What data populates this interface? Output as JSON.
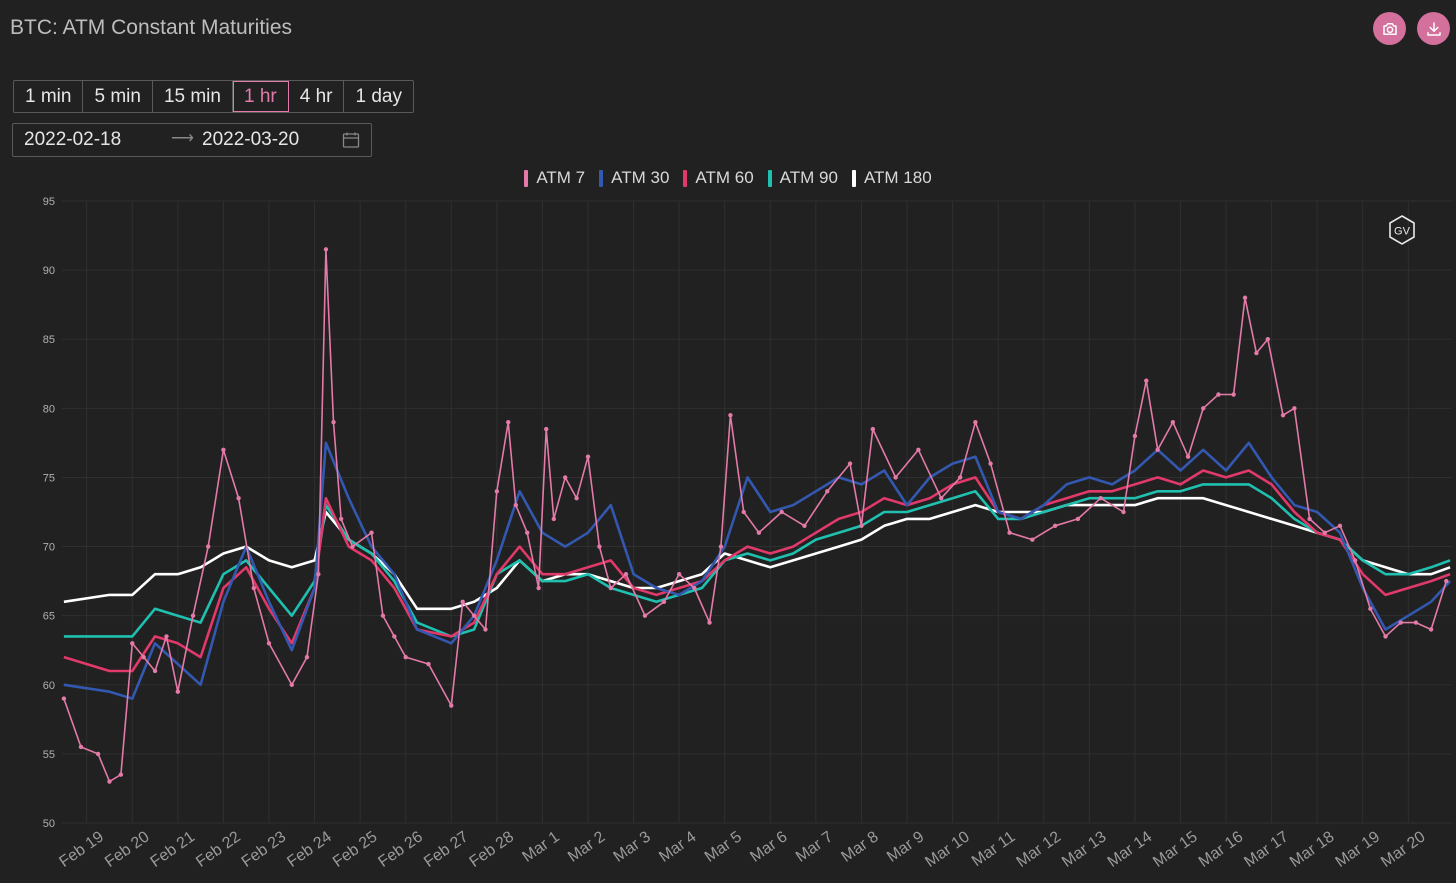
{
  "header": {
    "title": "BTC: ATM Constant Maturities",
    "camera_icon": "camera-icon",
    "download_icon": "download-icon",
    "accent": "#d4709c"
  },
  "timeframes": [
    {
      "label": "1 min",
      "active": false
    },
    {
      "label": "5 min",
      "active": false
    },
    {
      "label": "15 min",
      "active": false
    },
    {
      "label": "1 hr",
      "active": true
    },
    {
      "label": "4 hr",
      "active": false
    },
    {
      "label": "1 day",
      "active": false
    }
  ],
  "date_range": {
    "start": "2022-02-18",
    "end": "2022-03-20",
    "icon": "calendar-icon"
  },
  "watermark": "GV",
  "chart_data": {
    "type": "line",
    "title": "",
    "xlabel": "",
    "ylabel": "",
    "ylim": [
      50,
      95
    ],
    "yticks": [
      50,
      55,
      60,
      65,
      70,
      75,
      80,
      85,
      90,
      95
    ],
    "xlim": [
      "2022-02-18T11:00",
      "2022-03-20T23:00"
    ],
    "xticks": [
      "Feb 19",
      "Feb 20",
      "Feb 21",
      "Feb 22",
      "Feb 23",
      "Feb 24",
      "Feb 25",
      "Feb 26",
      "Feb 27",
      "Feb 28",
      "Mar 1",
      "Mar 2",
      "Mar 3",
      "Mar 4",
      "Mar 5",
      "Mar 6",
      "Mar 7",
      "Mar 8",
      "Mar 9",
      "Mar 10",
      "Mar 11",
      "Mar 12",
      "Mar 13",
      "Mar 14",
      "Mar 15",
      "Mar 16",
      "Mar 17",
      "Mar 18",
      "Mar 19",
      "Mar 20"
    ],
    "grid": true,
    "legend": "top-center",
    "series": [
      {
        "name": "ATM 7",
        "color": "#e37aa8",
        "marker": true,
        "x": [
          "2022-02-18T12:00",
          "2022-02-18T21:00",
          "2022-02-19T06:00",
          "2022-02-19T12:00",
          "2022-02-19T18:00",
          "2022-02-20T00:00",
          "2022-02-20T06:00",
          "2022-02-20T12:00",
          "2022-02-20T18:00",
          "2022-02-21T00:00",
          "2022-02-21T08:00",
          "2022-02-21T16:00",
          "2022-02-22T00:00",
          "2022-02-22T08:00",
          "2022-02-22T16:00",
          "2022-02-23T00:00",
          "2022-02-23T12:00",
          "2022-02-23T20:00",
          "2022-02-24T02:00",
          "2022-02-24T06:00",
          "2022-02-24T10:00",
          "2022-02-24T14:00",
          "2022-02-24T20:00",
          "2022-02-25T06:00",
          "2022-02-25T12:00",
          "2022-02-25T18:00",
          "2022-02-26T00:00",
          "2022-02-26T12:00",
          "2022-02-27T00:00",
          "2022-02-27T06:00",
          "2022-02-27T12:00",
          "2022-02-27T18:00",
          "2022-02-28T00:00",
          "2022-02-28T06:00",
          "2022-02-28T10:00",
          "2022-02-28T16:00",
          "2022-02-28T22:00",
          "2022-03-01T02:00",
          "2022-03-01T06:00",
          "2022-03-01T12:00",
          "2022-03-01T18:00",
          "2022-03-02T00:00",
          "2022-03-02T06:00",
          "2022-03-02T12:00",
          "2022-03-02T20:00",
          "2022-03-03T06:00",
          "2022-03-03T16:00",
          "2022-03-04T00:00",
          "2022-03-04T08:00",
          "2022-03-04T16:00",
          "2022-03-04T22:00",
          "2022-03-05T03:00",
          "2022-03-05T10:00",
          "2022-03-05T18:00",
          "2022-03-06T06:00",
          "2022-03-06T18:00",
          "2022-03-07T06:00",
          "2022-03-07T18:00",
          "2022-03-08T00:00",
          "2022-03-08T06:00",
          "2022-03-08T18:00",
          "2022-03-09T06:00",
          "2022-03-09T18:00",
          "2022-03-10T04:00",
          "2022-03-10T12:00",
          "2022-03-10T20:00",
          "2022-03-11T06:00",
          "2022-03-11T18:00",
          "2022-03-12T06:00",
          "2022-03-12T18:00",
          "2022-03-13T06:00",
          "2022-03-13T18:00",
          "2022-03-14T00:00",
          "2022-03-14T06:00",
          "2022-03-14T12:00",
          "2022-03-14T20:00",
          "2022-03-15T04:00",
          "2022-03-15T12:00",
          "2022-03-15T20:00",
          "2022-03-16T04:00",
          "2022-03-16T10:00",
          "2022-03-16T16:00",
          "2022-03-16T22:00",
          "2022-03-17T06:00",
          "2022-03-17T12:00",
          "2022-03-17T20:00",
          "2022-03-18T04:00",
          "2022-03-18T12:00",
          "2022-03-18T20:00",
          "2022-03-19T04:00",
          "2022-03-19T12:00",
          "2022-03-19T20:00",
          "2022-03-20T04:00",
          "2022-03-20T12:00",
          "2022-03-20T20:00"
        ],
        "values": [
          59.0,
          55.5,
          55.0,
          53.0,
          53.5,
          63.0,
          62.0,
          61.0,
          63.5,
          59.5,
          65.0,
          70.0,
          77.0,
          73.5,
          67.0,
          63.0,
          60.0,
          62.0,
          68.0,
          91.5,
          79.0,
          72.0,
          70.0,
          71.0,
          65.0,
          63.5,
          62.0,
          61.5,
          58.5,
          66.0,
          65.0,
          64.0,
          74.0,
          79.0,
          73.0,
          71.0,
          67.0,
          78.5,
          72.0,
          75.0,
          73.5,
          76.5,
          70.0,
          67.0,
          68.0,
          65.0,
          66.0,
          68.0,
          67.0,
          64.5,
          70.0,
          79.5,
          72.5,
          71.0,
          72.5,
          71.5,
          74.0,
          76.0,
          71.5,
          78.5,
          75.0,
          77.0,
          73.5,
          75.0,
          79.0,
          76.0,
          71.0,
          70.5,
          71.5,
          72.0,
          73.5,
          72.5,
          78.0,
          82.0,
          77.0,
          79.0,
          76.5,
          80.0,
          81.0,
          81.0,
          88.0,
          84.0,
          85.0,
          79.5,
          80.0,
          72.0,
          71.0,
          71.5,
          69.0,
          65.5,
          63.5,
          64.5,
          64.5,
          64.0,
          67.5
        ]
      },
      {
        "name": "ATM 30",
        "color": "#3358b0",
        "marker": false,
        "x": [
          "2022-02-18T12:00",
          "2022-02-19T12:00",
          "2022-02-20T00:00",
          "2022-02-20T12:00",
          "2022-02-21T00:00",
          "2022-02-21T12:00",
          "2022-02-22T00:00",
          "2022-02-22T12:00",
          "2022-02-23T00:00",
          "2022-02-23T12:00",
          "2022-02-24T00:00",
          "2022-02-24T06:00",
          "2022-02-24T18:00",
          "2022-02-25T06:00",
          "2022-02-25T18:00",
          "2022-02-26T06:00",
          "2022-02-27T00:00",
          "2022-02-27T12:00",
          "2022-02-28T00:00",
          "2022-02-28T12:00",
          "2022-03-01T00:00",
          "2022-03-01T12:00",
          "2022-03-02T00:00",
          "2022-03-02T12:00",
          "2022-03-03T00:00",
          "2022-03-03T12:00",
          "2022-03-04T00:00",
          "2022-03-04T12:00",
          "2022-03-05T00:00",
          "2022-03-05T12:00",
          "2022-03-06T00:00",
          "2022-03-06T12:00",
          "2022-03-07T00:00",
          "2022-03-07T12:00",
          "2022-03-08T00:00",
          "2022-03-08T12:00",
          "2022-03-09T00:00",
          "2022-03-09T12:00",
          "2022-03-10T00:00",
          "2022-03-10T12:00",
          "2022-03-11T00:00",
          "2022-03-11T12:00",
          "2022-03-12T00:00",
          "2022-03-12T12:00",
          "2022-03-13T00:00",
          "2022-03-13T12:00",
          "2022-03-14T00:00",
          "2022-03-14T12:00",
          "2022-03-15T00:00",
          "2022-03-15T12:00",
          "2022-03-16T00:00",
          "2022-03-16T12:00",
          "2022-03-17T00:00",
          "2022-03-17T12:00",
          "2022-03-18T00:00",
          "2022-03-18T12:00",
          "2022-03-19T00:00",
          "2022-03-19T12:00",
          "2022-03-20T00:00",
          "2022-03-20T12:00",
          "2022-03-20T22:00"
        ],
        "values": [
          60.0,
          59.5,
          59.0,
          63.0,
          61.5,
          60.0,
          66.0,
          70.0,
          66.0,
          62.5,
          67.0,
          77.5,
          73.5,
          70.0,
          68.0,
          64.0,
          63.0,
          65.0,
          69.0,
          74.0,
          71.0,
          70.0,
          71.0,
          73.0,
          68.0,
          67.0,
          66.5,
          67.5,
          70.0,
          75.0,
          72.5,
          73.0,
          74.0,
          75.0,
          74.5,
          75.5,
          73.0,
          75.0,
          76.0,
          76.5,
          72.5,
          72.0,
          73.0,
          74.5,
          75.0,
          74.5,
          75.5,
          77.0,
          75.5,
          77.0,
          75.5,
          77.5,
          75.0,
          73.0,
          72.5,
          71.0,
          67.0,
          64.0,
          65.0,
          66.0,
          67.5
        ]
      },
      {
        "name": "ATM 60",
        "color": "#e0396a",
        "marker": false,
        "x": [
          "2022-02-18T12:00",
          "2022-02-19T12:00",
          "2022-02-20T00:00",
          "2022-02-20T12:00",
          "2022-02-21T00:00",
          "2022-02-21T12:00",
          "2022-02-22T00:00",
          "2022-02-22T12:00",
          "2022-02-23T00:00",
          "2022-02-23T12:00",
          "2022-02-24T00:00",
          "2022-02-24T06:00",
          "2022-02-24T18:00",
          "2022-02-25T06:00",
          "2022-02-25T18:00",
          "2022-02-26T06:00",
          "2022-02-27T00:00",
          "2022-02-27T12:00",
          "2022-02-28T00:00",
          "2022-02-28T12:00",
          "2022-03-01T00:00",
          "2022-03-01T12:00",
          "2022-03-02T00:00",
          "2022-03-02T12:00",
          "2022-03-03T00:00",
          "2022-03-03T12:00",
          "2022-03-04T00:00",
          "2022-03-04T12:00",
          "2022-03-05T00:00",
          "2022-03-05T12:00",
          "2022-03-06T00:00",
          "2022-03-06T12:00",
          "2022-03-07T00:00",
          "2022-03-07T12:00",
          "2022-03-08T00:00",
          "2022-03-08T12:00",
          "2022-03-09T00:00",
          "2022-03-09T12:00",
          "2022-03-10T00:00",
          "2022-03-10T12:00",
          "2022-03-11T00:00",
          "2022-03-11T12:00",
          "2022-03-12T00:00",
          "2022-03-12T12:00",
          "2022-03-13T00:00",
          "2022-03-13T12:00",
          "2022-03-14T00:00",
          "2022-03-14T12:00",
          "2022-03-15T00:00",
          "2022-03-15T12:00",
          "2022-03-16T00:00",
          "2022-03-16T12:00",
          "2022-03-17T00:00",
          "2022-03-17T12:00",
          "2022-03-18T00:00",
          "2022-03-18T12:00",
          "2022-03-19T00:00",
          "2022-03-19T12:00",
          "2022-03-20T00:00",
          "2022-03-20T12:00",
          "2022-03-20T22:00"
        ],
        "values": [
          62.0,
          61.0,
          61.0,
          63.5,
          63.0,
          62.0,
          67.0,
          68.5,
          65.5,
          63.0,
          67.0,
          73.5,
          70.0,
          69.0,
          67.0,
          64.0,
          63.5,
          64.5,
          68.0,
          70.0,
          68.0,
          68.0,
          68.5,
          69.0,
          67.0,
          66.5,
          67.0,
          67.5,
          69.0,
          70.0,
          69.5,
          70.0,
          71.0,
          72.0,
          72.5,
          73.5,
          73.0,
          73.5,
          74.5,
          75.0,
          72.5,
          72.0,
          73.0,
          73.5,
          74.0,
          74.0,
          74.5,
          75.0,
          74.5,
          75.5,
          75.0,
          75.5,
          74.5,
          72.5,
          71.0,
          70.5,
          68.0,
          66.5,
          67.0,
          67.5,
          68.0
        ]
      },
      {
        "name": "ATM 90",
        "color": "#1fc0b0",
        "marker": false,
        "x": [
          "2022-02-18T12:00",
          "2022-02-19T12:00",
          "2022-02-20T00:00",
          "2022-02-20T12:00",
          "2022-02-21T00:00",
          "2022-02-21T12:00",
          "2022-02-22T00:00",
          "2022-02-22T12:00",
          "2022-02-23T00:00",
          "2022-02-23T12:00",
          "2022-02-24T00:00",
          "2022-02-24T06:00",
          "2022-02-24T18:00",
          "2022-02-25T06:00",
          "2022-02-25T18:00",
          "2022-02-26T06:00",
          "2022-02-27T00:00",
          "2022-02-27T12:00",
          "2022-02-28T00:00",
          "2022-02-28T12:00",
          "2022-03-01T00:00",
          "2022-03-01T12:00",
          "2022-03-02T00:00",
          "2022-03-02T12:00",
          "2022-03-03T00:00",
          "2022-03-03T12:00",
          "2022-03-04T00:00",
          "2022-03-04T12:00",
          "2022-03-05T00:00",
          "2022-03-05T12:00",
          "2022-03-06T00:00",
          "2022-03-06T12:00",
          "2022-03-07T00:00",
          "2022-03-07T12:00",
          "2022-03-08T00:00",
          "2022-03-08T12:00",
          "2022-03-09T00:00",
          "2022-03-09T12:00",
          "2022-03-10T00:00",
          "2022-03-10T12:00",
          "2022-03-11T00:00",
          "2022-03-11T12:00",
          "2022-03-12T00:00",
          "2022-03-12T12:00",
          "2022-03-13T00:00",
          "2022-03-13T12:00",
          "2022-03-14T00:00",
          "2022-03-14T12:00",
          "2022-03-15T00:00",
          "2022-03-15T12:00",
          "2022-03-16T00:00",
          "2022-03-16T12:00",
          "2022-03-17T00:00",
          "2022-03-17T12:00",
          "2022-03-18T00:00",
          "2022-03-18T12:00",
          "2022-03-19T00:00",
          "2022-03-19T12:00",
          "2022-03-20T00:00",
          "2022-03-20T12:00",
          "2022-03-20T22:00"
        ],
        "values": [
          63.5,
          63.5,
          63.5,
          65.5,
          65.0,
          64.5,
          68.0,
          69.0,
          67.0,
          65.0,
          67.5,
          73.0,
          70.5,
          69.5,
          67.5,
          64.5,
          63.5,
          64.0,
          68.0,
          69.0,
          67.5,
          67.5,
          68.0,
          67.0,
          66.5,
          66.0,
          66.5,
          67.0,
          69.0,
          69.5,
          69.0,
          69.5,
          70.5,
          71.0,
          71.5,
          72.5,
          72.5,
          73.0,
          73.5,
          74.0,
          72.0,
          72.0,
          72.5,
          73.0,
          73.5,
          73.5,
          73.5,
          74.0,
          74.0,
          74.5,
          74.5,
          74.5,
          73.5,
          72.0,
          71.0,
          70.5,
          69.0,
          68.0,
          68.0,
          68.5,
          69.0
        ]
      },
      {
        "name": "ATM 180",
        "color": "#ffffff",
        "marker": false,
        "x": [
          "2022-02-18T12:00",
          "2022-02-19T12:00",
          "2022-02-20T00:00",
          "2022-02-20T12:00",
          "2022-02-21T00:00",
          "2022-02-21T12:00",
          "2022-02-22T00:00",
          "2022-02-22T12:00",
          "2022-02-23T00:00",
          "2022-02-23T12:00",
          "2022-02-24T00:00",
          "2022-02-24T06:00",
          "2022-02-24T18:00",
          "2022-02-25T06:00",
          "2022-02-25T18:00",
          "2022-02-26T06:00",
          "2022-02-27T00:00",
          "2022-02-27T12:00",
          "2022-02-28T00:00",
          "2022-02-28T12:00",
          "2022-03-01T00:00",
          "2022-03-01T12:00",
          "2022-03-02T00:00",
          "2022-03-02T12:00",
          "2022-03-03T00:00",
          "2022-03-03T12:00",
          "2022-03-04T00:00",
          "2022-03-04T12:00",
          "2022-03-05T00:00",
          "2022-03-05T12:00",
          "2022-03-06T00:00",
          "2022-03-06T12:00",
          "2022-03-07T00:00",
          "2022-03-07T12:00",
          "2022-03-08T00:00",
          "2022-03-08T12:00",
          "2022-03-09T00:00",
          "2022-03-09T12:00",
          "2022-03-10T00:00",
          "2022-03-10T12:00",
          "2022-03-11T00:00",
          "2022-03-11T12:00",
          "2022-03-12T00:00",
          "2022-03-12T12:00",
          "2022-03-13T00:00",
          "2022-03-13T12:00",
          "2022-03-14T00:00",
          "2022-03-14T12:00",
          "2022-03-15T00:00",
          "2022-03-15T12:00",
          "2022-03-16T00:00",
          "2022-03-16T12:00",
          "2022-03-17T00:00",
          "2022-03-17T12:00",
          "2022-03-18T00:00",
          "2022-03-18T12:00",
          "2022-03-19T00:00",
          "2022-03-19T12:00",
          "2022-03-20T00:00",
          "2022-03-20T12:00",
          "2022-03-20T22:00"
        ],
        "values": [
          66.0,
          66.5,
          66.5,
          68.0,
          68.0,
          68.5,
          69.5,
          70.0,
          69.0,
          68.5,
          69.0,
          72.5,
          70.5,
          69.5,
          68.0,
          65.5,
          65.5,
          66.0,
          67.0,
          69.0,
          67.5,
          68.0,
          68.0,
          67.5,
          67.0,
          67.0,
          67.5,
          68.0,
          69.5,
          69.0,
          68.5,
          69.0,
          69.5,
          70.0,
          70.5,
          71.5,
          72.0,
          72.0,
          72.5,
          73.0,
          72.5,
          72.5,
          72.5,
          73.0,
          73.0,
          73.0,
          73.0,
          73.5,
          73.5,
          73.5,
          73.0,
          72.5,
          72.0,
          71.5,
          71.0,
          70.5,
          69.0,
          68.5,
          68.0,
          68.0,
          68.5
        ]
      }
    ]
  }
}
